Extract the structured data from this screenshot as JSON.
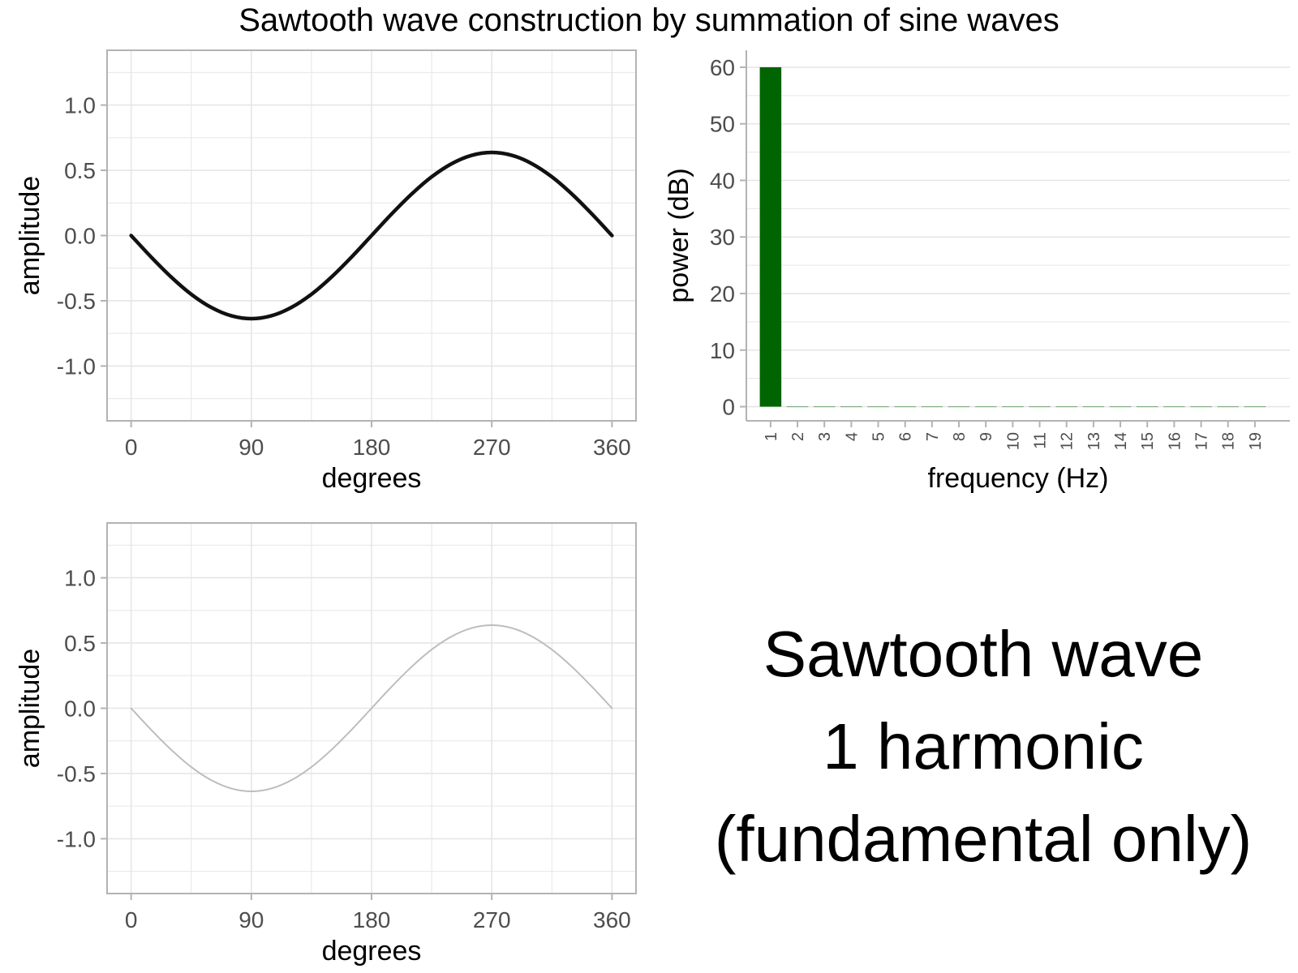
{
  "title": "Sawtooth wave construction by summation of sine waves",
  "annotation": {
    "line1": "Sawtooth wave",
    "line2": "1 harmonic",
    "line3": "(fundamental only)"
  },
  "colors": {
    "wave_top": "#111111",
    "wave_bottom": "#bdbdbd",
    "bar": "#006400",
    "grid": "#e6e6e6",
    "panel_border": "#b3b3b3",
    "tick_text": "#4d4d4d"
  },
  "chart_data": [
    {
      "id": "wave-top",
      "type": "line",
      "xlabel": "degrees",
      "ylabel": "amplitude",
      "xlim": [
        -18,
        378
      ],
      "ylim": [
        -1.42,
        1.42
      ],
      "x_ticks": [
        0,
        90,
        180,
        270,
        360
      ],
      "y_ticks": [
        1.0,
        0.5,
        0.0,
        -0.5,
        -1.0
      ],
      "y_tick_labels": [
        "1.0",
        "0.5",
        "0.0",
        "-0.5",
        "-1.0"
      ],
      "grid": true,
      "series": [
        {
          "x": [
            0,
            15,
            30,
            45,
            60,
            75,
            90,
            105,
            120,
            135,
            150,
            165,
            180,
            195,
            210,
            225,
            240,
            255,
            270,
            285,
            300,
            315,
            330,
            345,
            360
          ],
          "y": [
            0,
            -0.165,
            -0.318,
            -0.45,
            -0.551,
            -0.615,
            -0.637,
            -0.615,
            -0.551,
            -0.45,
            -0.318,
            -0.165,
            0,
            0.165,
            0.318,
            0.45,
            0.551,
            0.615,
            0.637,
            0.615,
            0.551,
            0.45,
            0.318,
            0.165,
            0
          ]
        }
      ]
    },
    {
      "id": "spectrum",
      "type": "bar",
      "xlabel": "frequency (Hz)",
      "ylabel": "power (dB)",
      "categories": [
        "1",
        "2",
        "3",
        "4",
        "5",
        "6",
        "7",
        "8",
        "9",
        "10",
        "11",
        "12",
        "13",
        "14",
        "15",
        "16",
        "17",
        "18",
        "19"
      ],
      "values": [
        60,
        0,
        0,
        0,
        0,
        0,
        0,
        0,
        0,
        0,
        0,
        0,
        0,
        0,
        0,
        0,
        0,
        0,
        0
      ],
      "ylim": [
        -2.5,
        63
      ],
      "y_ticks": [
        0,
        10,
        20,
        30,
        40,
        50,
        60
      ],
      "grid": true
    },
    {
      "id": "wave-bottom",
      "type": "line",
      "xlabel": "degrees",
      "ylabel": "amplitude",
      "xlim": [
        -18,
        378
      ],
      "ylim": [
        -1.42,
        1.42
      ],
      "x_ticks": [
        0,
        90,
        180,
        270,
        360
      ],
      "y_ticks": [
        1.0,
        0.5,
        0.0,
        -0.5,
        -1.0
      ],
      "y_tick_labels": [
        "1.0",
        "0.5",
        "0.0",
        "-0.5",
        "-1.0"
      ],
      "grid": true,
      "series": [
        {
          "x": [
            0,
            15,
            30,
            45,
            60,
            75,
            90,
            105,
            120,
            135,
            150,
            165,
            180,
            195,
            210,
            225,
            240,
            255,
            270,
            285,
            300,
            315,
            330,
            345,
            360
          ],
          "y": [
            0,
            -0.165,
            -0.318,
            -0.45,
            -0.551,
            -0.615,
            -0.637,
            -0.615,
            -0.551,
            -0.45,
            -0.318,
            -0.165,
            0,
            0.165,
            0.318,
            0.45,
            0.551,
            0.615,
            0.637,
            0.615,
            0.551,
            0.45,
            0.318,
            0.165,
            0
          ]
        }
      ]
    }
  ]
}
